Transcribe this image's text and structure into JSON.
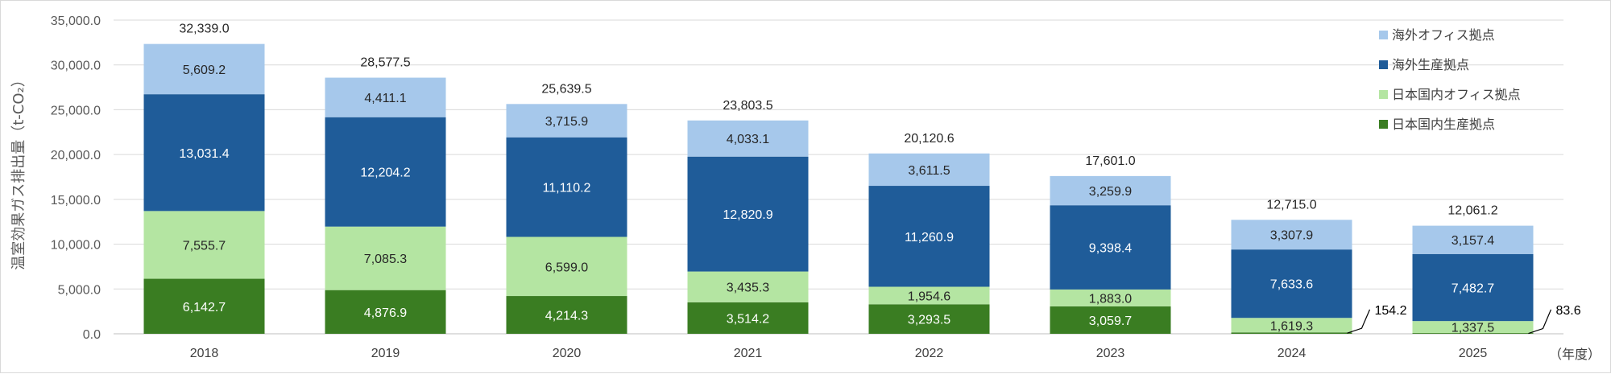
{
  "chart_data": {
    "type": "bar",
    "stacked": true,
    "categories": [
      "2018",
      "2019",
      "2020",
      "2021",
      "2022",
      "2023",
      "2024",
      "2025"
    ],
    "series": [
      {
        "name": "日本国内生産拠点",
        "color": "#3a7d22",
        "label_color": "#ffffff",
        "values": [
          6142.7,
          4876.9,
          4214.3,
          3514.2,
          3293.5,
          3059.7,
          154.2,
          83.6
        ],
        "labels": [
          "6,142.7",
          "4,876.9",
          "4,214.3",
          "3,514.2",
          "3,293.5",
          "3,059.7",
          "154.2",
          "83.6"
        ]
      },
      {
        "name": "日本国内オフィス拠点",
        "color": "#b4e5a2",
        "label_color": "#262626",
        "values": [
          7555.7,
          7085.3,
          6599.0,
          3435.3,
          1954.6,
          1883.0,
          1619.3,
          1337.5
        ],
        "labels": [
          "7,555.7",
          "7,085.3",
          "6,599.0",
          "3,435.3",
          "1,954.6",
          "1,883.0",
          "1,619.3",
          "1,337.5"
        ]
      },
      {
        "name": "海外生産拠点",
        "color": "#1f5c99",
        "label_color": "#ffffff",
        "values": [
          13031.4,
          12204.2,
          11110.2,
          12820.9,
          11260.9,
          9398.4,
          7633.6,
          7482.7
        ],
        "labels": [
          "13,031.4",
          "12,204.2",
          "11,110.2",
          "12,820.9",
          "11,260.9",
          "9,398.4",
          "7,633.6",
          "7,482.7"
        ]
      },
      {
        "name": "海外オフィス拠点",
        "color": "#a6c8eb",
        "label_color": "#262626",
        "values": [
          5609.2,
          4411.1,
          3715.9,
          4033.1,
          3611.5,
          3259.9,
          3307.9,
          3157.4
        ],
        "labels": [
          "5,609.2",
          "4,411.1",
          "3,715.9",
          "4,033.1",
          "3,611.5",
          "3,259.9",
          "3,307.9",
          "3,157.4"
        ]
      }
    ],
    "totals": [
      32339.0,
      28577.5,
      25639.5,
      23803.5,
      20120.6,
      17601.0,
      12715.0,
      12061.2
    ],
    "total_labels": [
      "32,339.0",
      "28,577.5",
      "25,639.5",
      "23,803.5",
      "20,120.6",
      "17,601.0",
      "12,715.0",
      "12,061.2"
    ],
    "callouts": [
      {
        "category_index": 6,
        "series_index": 0,
        "text": "154.2"
      },
      {
        "category_index": 7,
        "series_index": 0,
        "text": "83.6"
      }
    ],
    "ylabel": "温室効果ガス排出量（t-CO₂）",
    "x_unit": "（年度）",
    "ylim": [
      0,
      35000
    ],
    "yticks": [
      0,
      5000,
      10000,
      15000,
      20000,
      25000,
      30000,
      35000
    ],
    "ytick_labels": [
      "0.0",
      "5,000.0",
      "10,000.0",
      "15,000.0",
      "20,000.0",
      "25,000.0",
      "30,000.0",
      "35,000.0"
    ],
    "grid": true,
    "legend_position": "top-right",
    "legend_order": [
      3,
      2,
      1,
      0
    ]
  }
}
